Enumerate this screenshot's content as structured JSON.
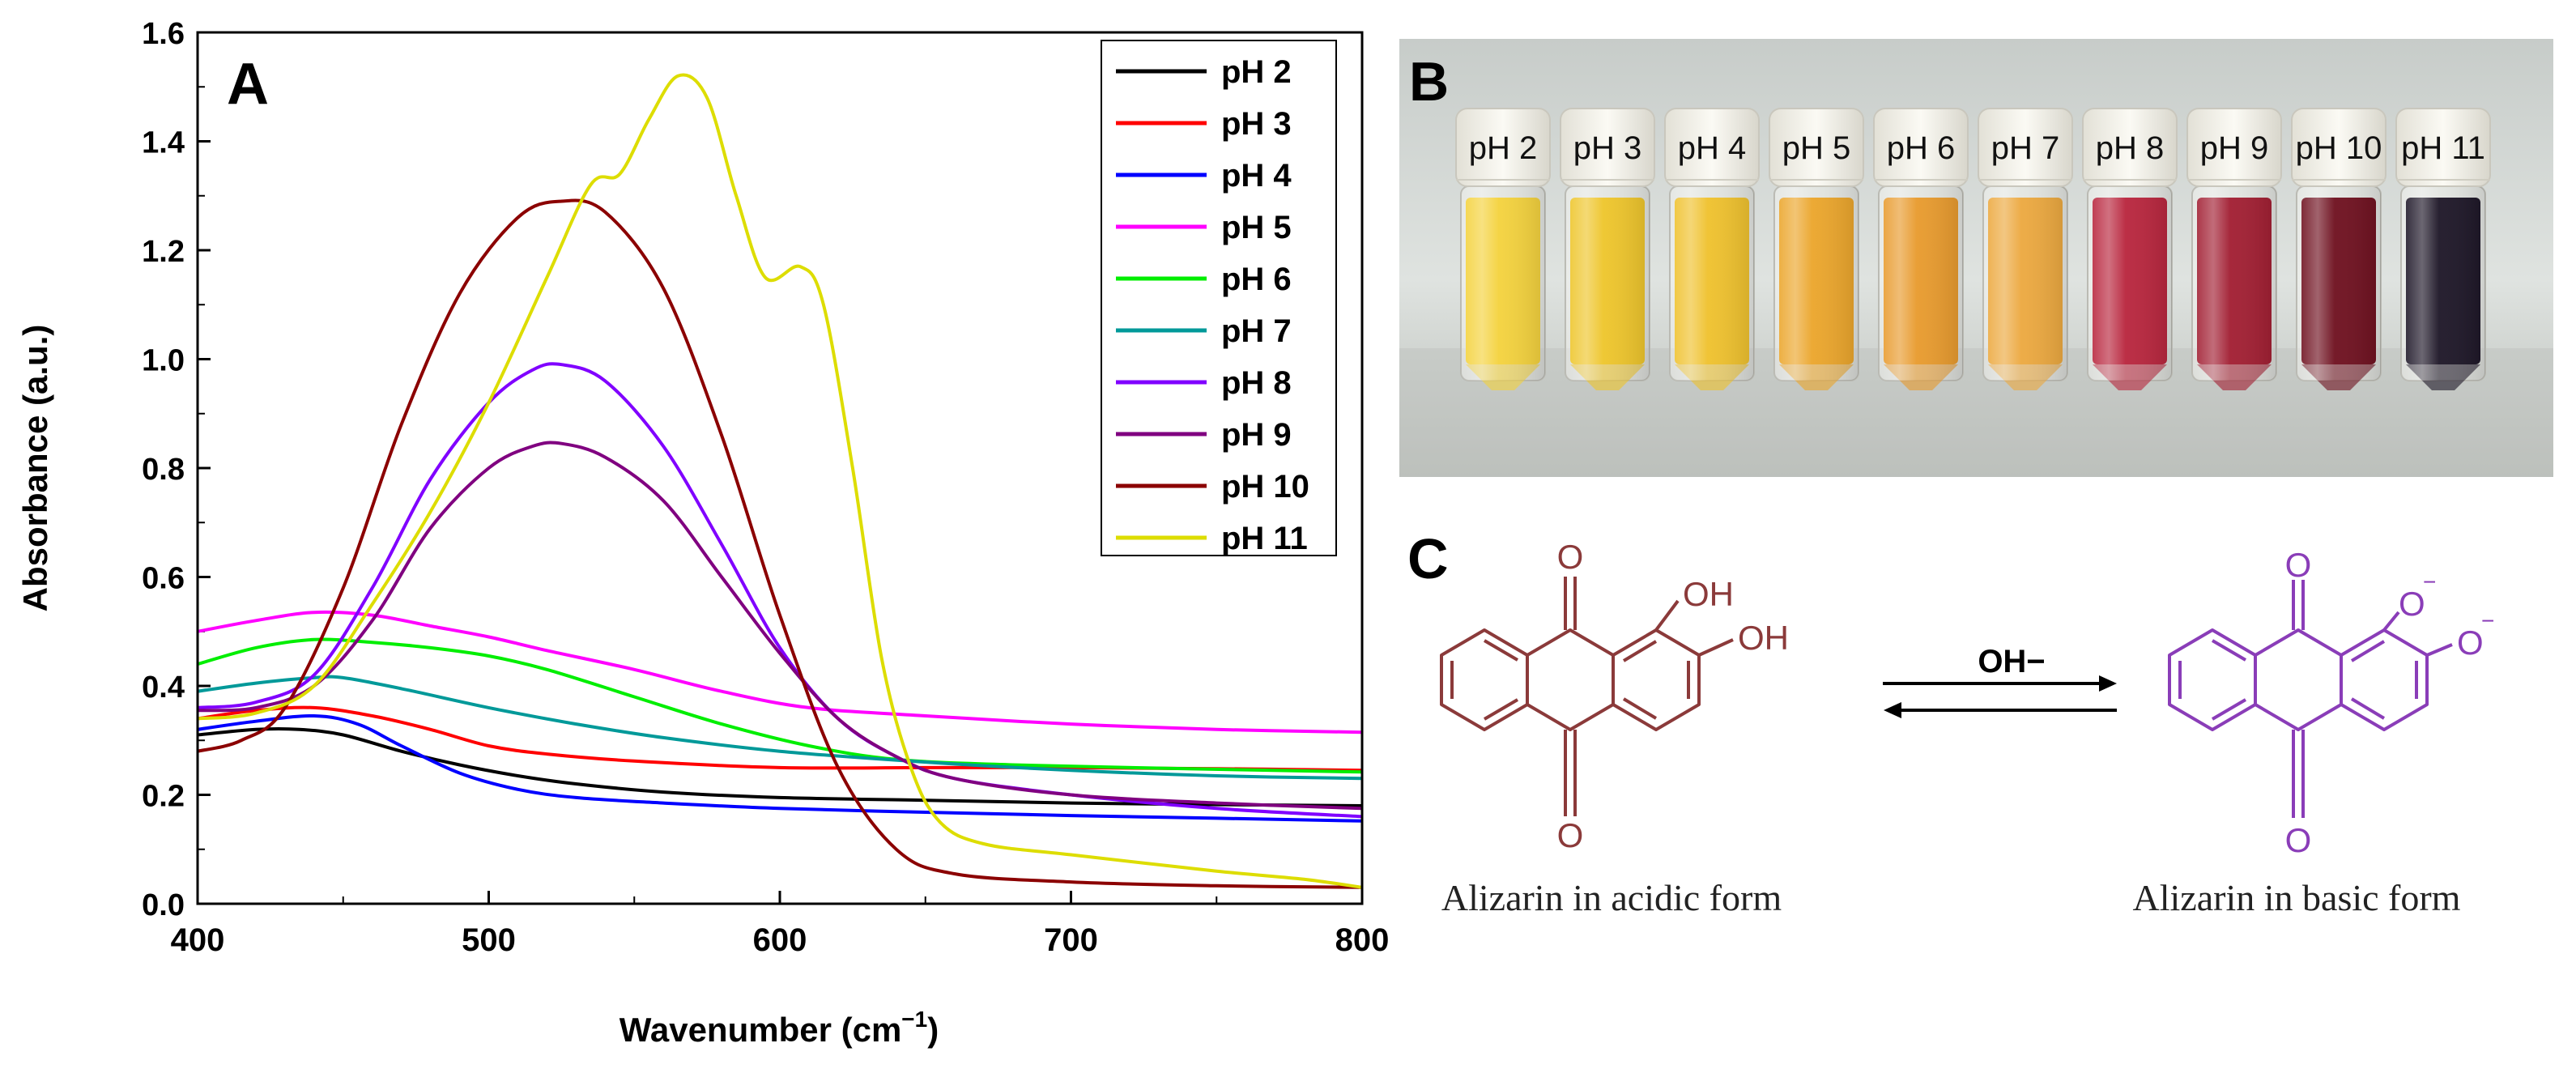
{
  "chart_data": {
    "type": "line",
    "panel_label": "A",
    "title": "",
    "xlabel": "Wavenumber (cm",
    "xlabel_sup": "−1",
    "xlabel_close": ")",
    "ylabel": "Absorbance (a.u.)",
    "xlim": [
      400,
      800
    ],
    "ylim": [
      0.0,
      1.6
    ],
    "x_ticks": [
      "400",
      "500",
      "600",
      "700",
      "800"
    ],
    "y_ticks": [
      "0.0",
      "0.2",
      "0.4",
      "0.6",
      "0.8",
      "1.0",
      "1.2",
      "1.4",
      "1.6"
    ],
    "legend_position": "top-right",
    "series": [
      {
        "name": "pH 2",
        "color": "#000000",
        "points": [
          [
            400,
            0.31
          ],
          [
            420,
            0.32
          ],
          [
            435,
            0.32
          ],
          [
            450,
            0.31
          ],
          [
            470,
            0.28
          ],
          [
            490,
            0.255
          ],
          [
            510,
            0.235
          ],
          [
            530,
            0.22
          ],
          [
            560,
            0.205
          ],
          [
            600,
            0.195
          ],
          [
            650,
            0.19
          ],
          [
            700,
            0.185
          ],
          [
            750,
            0.182
          ],
          [
            800,
            0.18
          ]
        ]
      },
      {
        "name": "pH 3",
        "color": "#ff0000",
        "points": [
          [
            400,
            0.34
          ],
          [
            420,
            0.355
          ],
          [
            440,
            0.36
          ],
          [
            460,
            0.345
          ],
          [
            480,
            0.32
          ],
          [
            500,
            0.29
          ],
          [
            520,
            0.275
          ],
          [
            550,
            0.262
          ],
          [
            600,
            0.25
          ],
          [
            650,
            0.25
          ],
          [
            700,
            0.25
          ],
          [
            750,
            0.248
          ],
          [
            800,
            0.245
          ]
        ]
      },
      {
        "name": "pH 4",
        "color": "#0000ff",
        "points": [
          [
            400,
            0.32
          ],
          [
            420,
            0.335
          ],
          [
            440,
            0.345
          ],
          [
            455,
            0.33
          ],
          [
            470,
            0.29
          ],
          [
            490,
            0.24
          ],
          [
            510,
            0.21
          ],
          [
            530,
            0.195
          ],
          [
            560,
            0.185
          ],
          [
            600,
            0.175
          ],
          [
            650,
            0.168
          ],
          [
            700,
            0.162
          ],
          [
            750,
            0.157
          ],
          [
            800,
            0.152
          ]
        ]
      },
      {
        "name": "pH 5",
        "color": "#ff00ff",
        "points": [
          [
            400,
            0.5
          ],
          [
            420,
            0.52
          ],
          [
            440,
            0.535
          ],
          [
            460,
            0.53
          ],
          [
            480,
            0.51
          ],
          [
            500,
            0.49
          ],
          [
            520,
            0.465
          ],
          [
            550,
            0.43
          ],
          [
            580,
            0.39
          ],
          [
            610,
            0.36
          ],
          [
            650,
            0.345
          ],
          [
            700,
            0.33
          ],
          [
            750,
            0.32
          ],
          [
            800,
            0.315
          ]
        ]
      },
      {
        "name": "pH 6",
        "color": "#00ee00",
        "points": [
          [
            400,
            0.44
          ],
          [
            420,
            0.47
          ],
          [
            440,
            0.485
          ],
          [
            460,
            0.48
          ],
          [
            480,
            0.47
          ],
          [
            500,
            0.455
          ],
          [
            520,
            0.43
          ],
          [
            550,
            0.38
          ],
          [
            580,
            0.33
          ],
          [
            610,
            0.29
          ],
          [
            640,
            0.265
          ],
          [
            680,
            0.255
          ],
          [
            740,
            0.248
          ],
          [
            800,
            0.242
          ]
        ]
      },
      {
        "name": "pH 7",
        "color": "#009999",
        "points": [
          [
            400,
            0.39
          ],
          [
            420,
            0.405
          ],
          [
            440,
            0.415
          ],
          [
            450,
            0.415
          ],
          [
            470,
            0.395
          ],
          [
            500,
            0.36
          ],
          [
            530,
            0.33
          ],
          [
            560,
            0.305
          ],
          [
            600,
            0.28
          ],
          [
            650,
            0.26
          ],
          [
            700,
            0.245
          ],
          [
            750,
            0.235
          ],
          [
            800,
            0.23
          ]
        ]
      },
      {
        "name": "pH 8",
        "color": "#8000ff",
        "points": [
          [
            400,
            0.36
          ],
          [
            420,
            0.37
          ],
          [
            440,
            0.42
          ],
          [
            460,
            0.58
          ],
          [
            480,
            0.78
          ],
          [
            500,
            0.92
          ],
          [
            515,
            0.98
          ],
          [
            525,
            0.99
          ],
          [
            540,
            0.96
          ],
          [
            560,
            0.84
          ],
          [
            580,
            0.66
          ],
          [
            600,
            0.47
          ],
          [
            620,
            0.34
          ],
          [
            640,
            0.27
          ],
          [
            660,
            0.23
          ],
          [
            700,
            0.2
          ],
          [
            750,
            0.175
          ],
          [
            800,
            0.16
          ]
        ]
      },
      {
        "name": "pH 9",
        "color": "#800080",
        "points": [
          [
            400,
            0.355
          ],
          [
            420,
            0.36
          ],
          [
            440,
            0.4
          ],
          [
            460,
            0.52
          ],
          [
            480,
            0.69
          ],
          [
            500,
            0.8
          ],
          [
            515,
            0.84
          ],
          [
            525,
            0.845
          ],
          [
            540,
            0.82
          ],
          [
            560,
            0.74
          ],
          [
            580,
            0.6
          ],
          [
            600,
            0.46
          ],
          [
            620,
            0.34
          ],
          [
            640,
            0.27
          ],
          [
            660,
            0.23
          ],
          [
            700,
            0.2
          ],
          [
            750,
            0.185
          ],
          [
            800,
            0.175
          ]
        ]
      },
      {
        "name": "pH 10",
        "color": "#8b0000",
        "points": [
          [
            400,
            0.28
          ],
          [
            415,
            0.3
          ],
          [
            430,
            0.36
          ],
          [
            450,
            0.58
          ],
          [
            470,
            0.88
          ],
          [
            490,
            1.12
          ],
          [
            510,
            1.26
          ],
          [
            525,
            1.29
          ],
          [
            540,
            1.27
          ],
          [
            560,
            1.13
          ],
          [
            580,
            0.86
          ],
          [
            600,
            0.53
          ],
          [
            620,
            0.25
          ],
          [
            640,
            0.1
          ],
          [
            660,
            0.055
          ],
          [
            700,
            0.04
          ],
          [
            750,
            0.033
          ],
          [
            800,
            0.03
          ]
        ]
      },
      {
        "name": "pH 11",
        "color": "#dddd00",
        "points": [
          [
            400,
            0.34
          ],
          [
            420,
            0.35
          ],
          [
            440,
            0.4
          ],
          [
            460,
            0.55
          ],
          [
            480,
            0.72
          ],
          [
            500,
            0.92
          ],
          [
            520,
            1.15
          ],
          [
            535,
            1.32
          ],
          [
            545,
            1.34
          ],
          [
            555,
            1.44
          ],
          [
            565,
            1.52
          ],
          [
            575,
            1.48
          ],
          [
            585,
            1.3
          ],
          [
            595,
            1.15
          ],
          [
            607,
            1.17
          ],
          [
            615,
            1.1
          ],
          [
            625,
            0.8
          ],
          [
            635,
            0.45
          ],
          [
            645,
            0.25
          ],
          [
            655,
            0.15
          ],
          [
            670,
            0.11
          ],
          [
            700,
            0.09
          ],
          [
            750,
            0.06
          ],
          [
            780,
            0.045
          ],
          [
            800,
            0.03
          ]
        ]
      }
    ]
  },
  "panel_b": {
    "label": "B",
    "vials": [
      {
        "label": "pH 2",
        "color": "#f4d23c"
      },
      {
        "label": "pH 3",
        "color": "#eec52a"
      },
      {
        "label": "pH 4",
        "color": "#efc12c"
      },
      {
        "label": "pH 5",
        "color": "#eba52a"
      },
      {
        "label": "pH 6",
        "color": "#e89a2c"
      },
      {
        "label": "pH 7",
        "color": "#eca83e"
      },
      {
        "label": "pH 8",
        "color": "#b8243c"
      },
      {
        "label": "pH 9",
        "color": "#a11d31"
      },
      {
        "label": "pH 10",
        "color": "#6e0f1e"
      },
      {
        "label": "pH 11",
        "color": "#1c1526"
      }
    ]
  },
  "panel_c": {
    "label": "C",
    "acid_caption": "Alizarin in acidic form",
    "base_caption": "Alizarin in basic form",
    "arrow_label": "OH−",
    "acid_color": "#8b3a3a",
    "base_color": "#8a3db8",
    "acid_atoms": {
      "o_top": "O",
      "o_bottom": "O",
      "oh1": "OH",
      "oh2": "OH"
    },
    "base_atoms": {
      "o_top": "O",
      "o_bottom": "O",
      "o1": "O",
      "o2": "O",
      "charge": "−"
    }
  }
}
